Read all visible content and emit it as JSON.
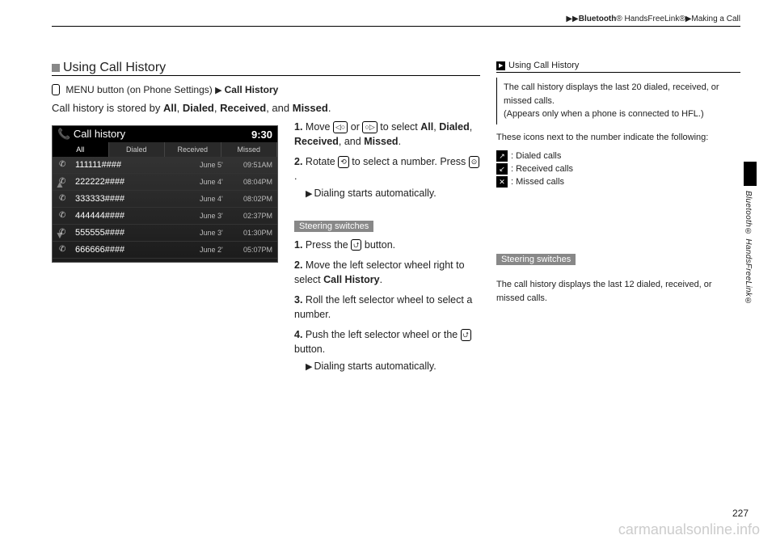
{
  "breadcrumb": {
    "part1": "Bluetooth",
    "part2": "® HandsFreeLink®",
    "part3": "Making a Call"
  },
  "section_title": "Using Call History",
  "menu_line": {
    "prefix": "MENU button (on Phone Settings)",
    "target": "Call History"
  },
  "intro_line": {
    "a": "Call history is stored by ",
    "b": "All",
    "c": ", ",
    "d": "Dialed",
    "e": ", ",
    "f": "Received",
    "g": ", and ",
    "h": "Missed",
    "i": "."
  },
  "screen": {
    "title": "Call history",
    "clock": "9:30",
    "tabs": [
      "All",
      "Dialed",
      "Received",
      "Missed"
    ],
    "rows": [
      {
        "num": "111111####",
        "date": "June 5'",
        "time": "09:51AM"
      },
      {
        "num": "222222####",
        "date": "June 4'",
        "time": "08:04PM"
      },
      {
        "num": "333333####",
        "date": "June 4'",
        "time": "08:02PM"
      },
      {
        "num": "444444####",
        "date": "June 3'",
        "time": "02:37PM"
      },
      {
        "num": "555555####",
        "date": "June 3'",
        "time": "01:30PM"
      },
      {
        "num": "666666####",
        "date": "June 2'",
        "time": "05:07PM"
      }
    ]
  },
  "steps_a": {
    "s1a": "Move ",
    "s1b": " or ",
    "s1c": " to select ",
    "s1_all": "All",
    "s1_comma1": ", ",
    "s1_dialed": "Dialed",
    "s1_comma2": ", ",
    "s1_received": "Received",
    "s1_and": ", and ",
    "s1_missed": "Missed",
    "s1_period": ".",
    "s2a": "Rotate ",
    "s2b": " to select a number. Press ",
    "s2c": ".",
    "sub": "Dialing starts automatically."
  },
  "steering_label": "Steering switches",
  "steps_b": {
    "s1a": "Press the ",
    "s1b": " button.",
    "s2": "Move the left selector wheel right to select ",
    "s2_target": "Call History",
    "s2_period": ".",
    "s3": "Roll the left selector wheel to select a number.",
    "s4a": "Push the left selector wheel or the ",
    "s4b": " button.",
    "sub": "Dialing starts automatically."
  },
  "right": {
    "heading": "Using Call History",
    "box1a": "The call history displays the last 20 dialed, received, or missed calls.",
    "box1b": "(Appears only when a phone is connected to HFL.)",
    "intro2": "These icons next to the number indicate the following:",
    "legend": [
      {
        "label": ": Dialed calls"
      },
      {
        "label": ": Received calls"
      },
      {
        "label": ": Missed calls"
      }
    ],
    "steering_label": "Steering switches",
    "box2": "The call history displays the last 12 dialed, received, or missed calls."
  },
  "side_label": "Bluetooth® HandsFreeLink®",
  "page_number": "227",
  "watermark": "carmanualsonline.info"
}
